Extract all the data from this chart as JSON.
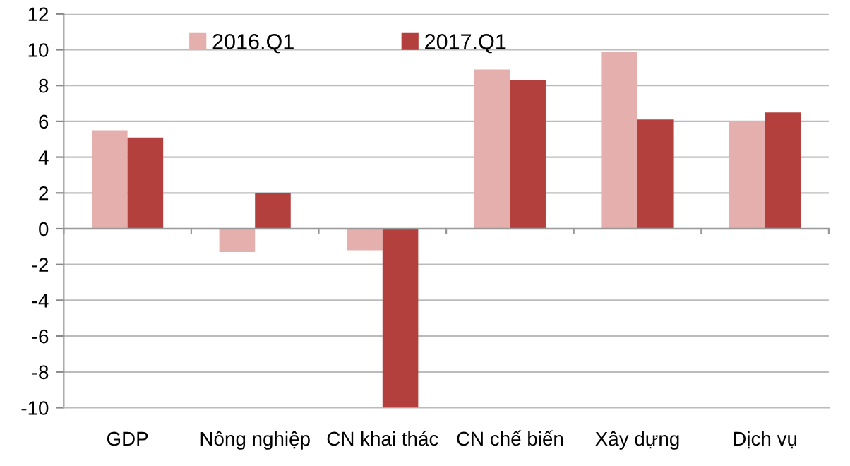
{
  "chart_data": {
    "type": "bar",
    "categories": [
      "GDP",
      "Nông nghiệp",
      "CN khai thác",
      "CN chế biến",
      "Xây dựng",
      "Dịch vụ"
    ],
    "series": [
      {
        "name": "2016.Q1",
        "color": "#e4afad",
        "values": [
          5.5,
          -1.3,
          -1.2,
          8.9,
          9.9,
          6.0
        ]
      },
      {
        "name": "2017.Q1",
        "color": "#b3403d",
        "values": [
          5.1,
          2.0,
          -10,
          8.3,
          6.1,
          6.5
        ]
      }
    ],
    "ylim": [
      -10,
      12
    ],
    "yticks": [
      -10,
      -8,
      -6,
      -4,
      -2,
      0,
      2,
      4,
      6,
      8,
      10,
      12
    ],
    "grid": "y",
    "legend": "top left"
  }
}
